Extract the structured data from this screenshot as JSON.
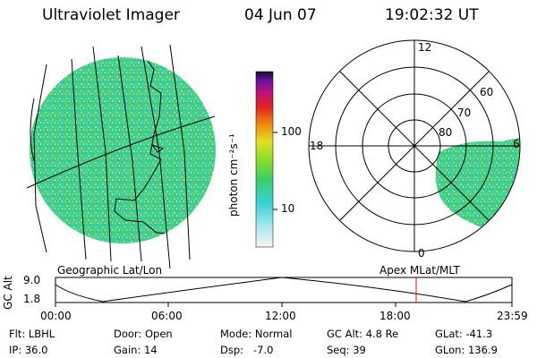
{
  "header": {
    "instrument": "Ultraviolet Imager",
    "date": "04 Jun 07",
    "time": "19:02:32 UT"
  },
  "colorbar": {
    "label": "photon cm⁻²s⁻¹",
    "ticks": [
      "100",
      "10"
    ]
  },
  "geo_panel": {
    "label": "Geographic Lat/Lon"
  },
  "polar_panel": {
    "label": "Apex MLat/MLT",
    "mlt_labels": [
      "12",
      "18",
      "6",
      "0"
    ],
    "mlat_labels": [
      "60",
      "70",
      "80"
    ]
  },
  "orbit_plot": {
    "ylabel": "GC Alt",
    "yticks": [
      "9.0",
      "1.8"
    ],
    "xticks": [
      "00:00",
      "06:00",
      "12:00",
      "18:00",
      "23:59"
    ],
    "current_time_marker_color": "#ff0000"
  },
  "info": {
    "flt": "Flt: LBHL",
    "ip": "IP: 36.0",
    "door": "Door: Open",
    "gain": "Gain: 14",
    "mode": "Mode: Normal",
    "dsp": "Dsp:   -7.0",
    "gc_alt": "GC Alt: 4.8 Re",
    "seq": "Seq: 39",
    "glat": "GLat: -41.3",
    "glon": "GLon: 136.9"
  }
}
